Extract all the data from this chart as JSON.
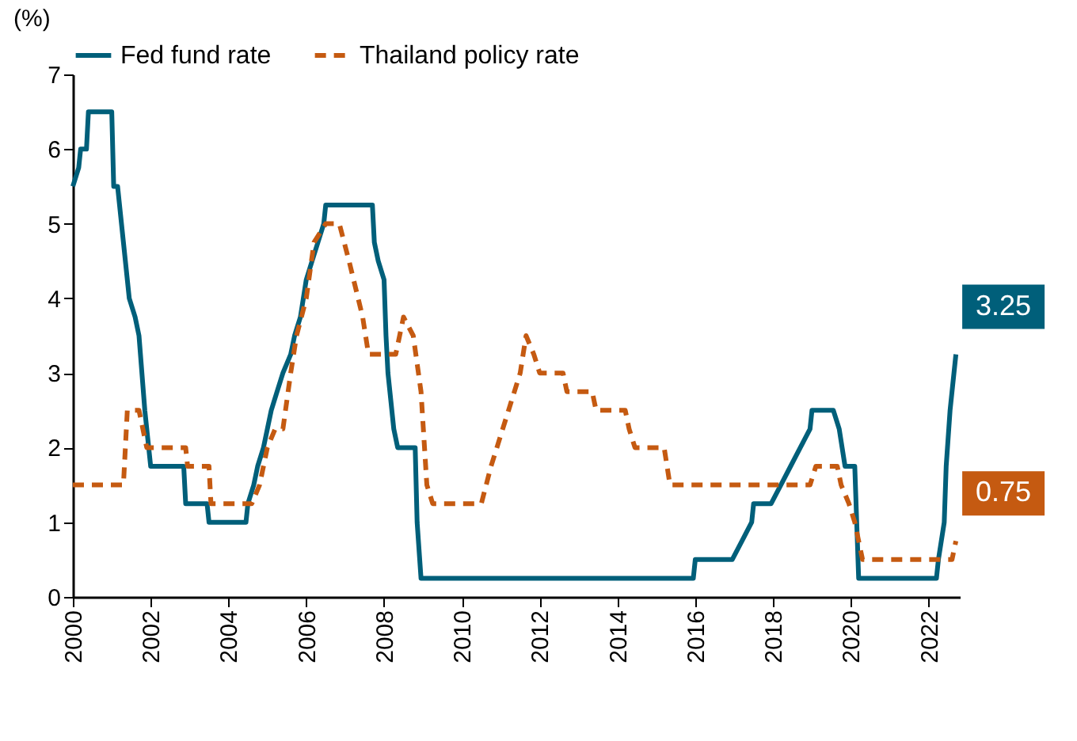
{
  "chart_data": {
    "type": "line",
    "ylabel": "(%)",
    "xlim": [
      2000,
      2022.8
    ],
    "xticks": [
      2000,
      2002,
      2004,
      2006,
      2008,
      2010,
      2012,
      2014,
      2016,
      2018,
      2020,
      2022
    ],
    "ylim": [
      0,
      7
    ],
    "yticks": [
      0,
      1,
      2,
      3,
      4,
      5,
      6,
      7
    ],
    "grid": false,
    "legend": "top",
    "marker": "none",
    "series": [
      {
        "name": "Fed fund rate",
        "color": "#005f7a",
        "line_style": "solid",
        "x": [
          2000.0,
          2000.15,
          2000.2,
          2000.35,
          2000.4,
          2001.0,
          2001.05,
          2001.15,
          2001.3,
          2001.45,
          2001.6,
          2001.7,
          2001.85,
          2001.95,
          2002.0,
          2002.85,
          2002.9,
          2003.45,
          2003.5,
          2004.45,
          2004.5,
          2004.65,
          2004.75,
          2004.9,
          2005.0,
          2005.1,
          2005.25,
          2005.4,
          2005.6,
          2005.7,
          2005.85,
          2006.0,
          2006.15,
          2006.3,
          2006.45,
          2006.5,
          2007.7,
          2007.75,
          2007.85,
          2008.0,
          2008.05,
          2008.1,
          2008.25,
          2008.35,
          2008.8,
          2008.85,
          2008.95,
          2015.95,
          2016.0,
          2016.95,
          2017.2,
          2017.45,
          2017.5,
          2017.95,
          2018.2,
          2018.45,
          2018.7,
          2018.95,
          2019.0,
          2019.55,
          2019.7,
          2019.85,
          2020.1,
          2020.2,
          2022.2,
          2022.25,
          2022.4,
          2022.45,
          2022.55,
          2022.7
        ],
        "values": [
          5.5,
          5.75,
          6.0,
          6.0,
          6.5,
          6.5,
          5.5,
          5.5,
          4.75,
          4.0,
          3.75,
          3.5,
          2.5,
          2.0,
          1.75,
          1.75,
          1.25,
          1.25,
          1.0,
          1.0,
          1.25,
          1.5,
          1.75,
          2.0,
          2.25,
          2.5,
          2.75,
          3.0,
          3.25,
          3.5,
          3.75,
          4.25,
          4.5,
          4.75,
          5.0,
          5.25,
          5.25,
          4.75,
          4.5,
          4.25,
          3.5,
          3.0,
          2.25,
          2.0,
          2.0,
          1.0,
          0.25,
          0.25,
          0.5,
          0.5,
          0.75,
          1.0,
          1.25,
          1.25,
          1.5,
          1.75,
          2.0,
          2.25,
          2.5,
          2.5,
          2.25,
          1.75,
          1.75,
          0.25,
          0.25,
          0.5,
          1.0,
          1.75,
          2.5,
          3.25
        ]
      },
      {
        "name": "Thailand policy rate",
        "color": "#c55a11",
        "line_style": "dashed",
        "x": [
          2000.0,
          2001.3,
          2001.4,
          2001.7,
          2001.9,
          2002.9,
          2002.95,
          2003.5,
          2003.55,
          2004.6,
          2004.8,
          2005.0,
          2005.2,
          2005.4,
          2005.6,
          2005.75,
          2006.0,
          2006.2,
          2006.5,
          2006.85,
          2007.1,
          2007.45,
          2007.6,
          2008.3,
          2008.5,
          2008.75,
          2008.95,
          2009.1,
          2009.25,
          2010.5,
          2010.75,
          2011.2,
          2011.5,
          2011.65,
          2011.85,
          2012.0,
          2012.6,
          2012.7,
          2013.35,
          2013.45,
          2014.2,
          2014.3,
          2014.45,
          2015.2,
          2015.35,
          2018.95,
          2019.1,
          2019.65,
          2019.75,
          2019.95,
          2020.1,
          2020.2,
          2020.3,
          2022.6,
          2022.7
        ],
        "values": [
          1.5,
          1.5,
          2.5,
          2.5,
          2.0,
          2.0,
          1.75,
          1.75,
          1.25,
          1.25,
          1.5,
          2.0,
          2.25,
          2.25,
          3.0,
          3.5,
          4.0,
          4.75,
          5.0,
          5.0,
          4.5,
          3.75,
          3.25,
          3.25,
          3.75,
          3.5,
          2.75,
          1.5,
          1.25,
          1.25,
          1.75,
          2.5,
          3.0,
          3.5,
          3.25,
          3.0,
          3.0,
          2.75,
          2.75,
          2.5,
          2.5,
          2.25,
          2.0,
          2.0,
          1.5,
          1.5,
          1.75,
          1.75,
          1.5,
          1.25,
          1.0,
          0.75,
          0.5,
          0.5,
          0.75
        ]
      }
    ],
    "annotations": [
      {
        "text": "3.25",
        "x": 2022.7,
        "y": 3.25
      },
      {
        "text": "0.75",
        "x": 2022.7,
        "y": 0.75
      }
    ]
  }
}
